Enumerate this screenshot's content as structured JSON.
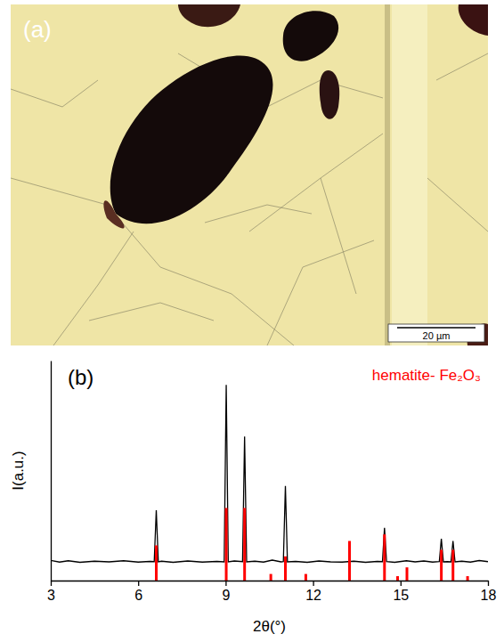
{
  "image_panel": {
    "panel_label": "(a)",
    "scale_bar": "20 µm"
  },
  "chart_data": {
    "type": "line",
    "panel_label": "(b)",
    "x_label": "2θ(°)",
    "y_label": "I(a.u.)",
    "xlim": [
      3,
      18
    ],
    "xticks": [
      3,
      6,
      9,
      12,
      15,
      18
    ],
    "ylim": [
      0,
      100
    ],
    "tick_labels": "x",
    "legend": "top-right",
    "series": [
      {
        "type": "line",
        "color": "#000000",
        "x": [
          3,
          3.3,
          3.6,
          4.0,
          4.5,
          5.0,
          5.5,
          6.0,
          6.4,
          6.55,
          6.62,
          6.69,
          6.8,
          7.2,
          7.7,
          8.2,
          8.7,
          8.95,
          9.02,
          9.09,
          9.3,
          9.58,
          9.65,
          9.72,
          10.0,
          10.3,
          10.6,
          10.9,
          10.98,
          11.05,
          11.12,
          11.4,
          11.8,
          12.2,
          12.6,
          13.0,
          13.4,
          13.8,
          14.2,
          14.38,
          14.45,
          14.52,
          14.8,
          15.2,
          15.5,
          15.8,
          16.1,
          16.33,
          16.4,
          16.47,
          16.6,
          16.73,
          16.8,
          16.87,
          17.1,
          17.4,
          17.7,
          18
        ],
        "values": [
          9.2,
          8.4,
          9.0,
          8.3,
          8.8,
          8.5,
          9.0,
          8.4,
          8.7,
          8.6,
          32,
          8.5,
          8.8,
          8.3,
          8.9,
          8.4,
          8.7,
          8.5,
          89,
          8.5,
          8.9,
          8.6,
          65.5,
          8.5,
          8.8,
          8.4,
          9.3,
          8.5,
          8.6,
          43,
          8.5,
          8.7,
          8.3,
          8.9,
          8.5,
          8.4,
          8.8,
          8.3,
          8.7,
          8.6,
          24,
          8.6,
          8.3,
          9.0,
          8.5,
          8.9,
          8.4,
          8.6,
          19,
          8.5,
          8.6,
          8.5,
          18,
          8.5,
          8.8,
          8.4,
          9.1,
          8.6
        ]
      },
      {
        "type": "stick",
        "name": "hematite- Fe₂O₃",
        "color": "#ff0000",
        "x": [
          6.62,
          9.02,
          9.65,
          10.55,
          11.05,
          11.75,
          13.25,
          14.45,
          14.9,
          15.22,
          16.4,
          16.8,
          17.3
        ],
        "values": [
          16,
          33,
          33,
          3,
          11,
          3,
          18,
          21,
          2,
          6,
          14,
          14,
          2
        ]
      }
    ]
  }
}
